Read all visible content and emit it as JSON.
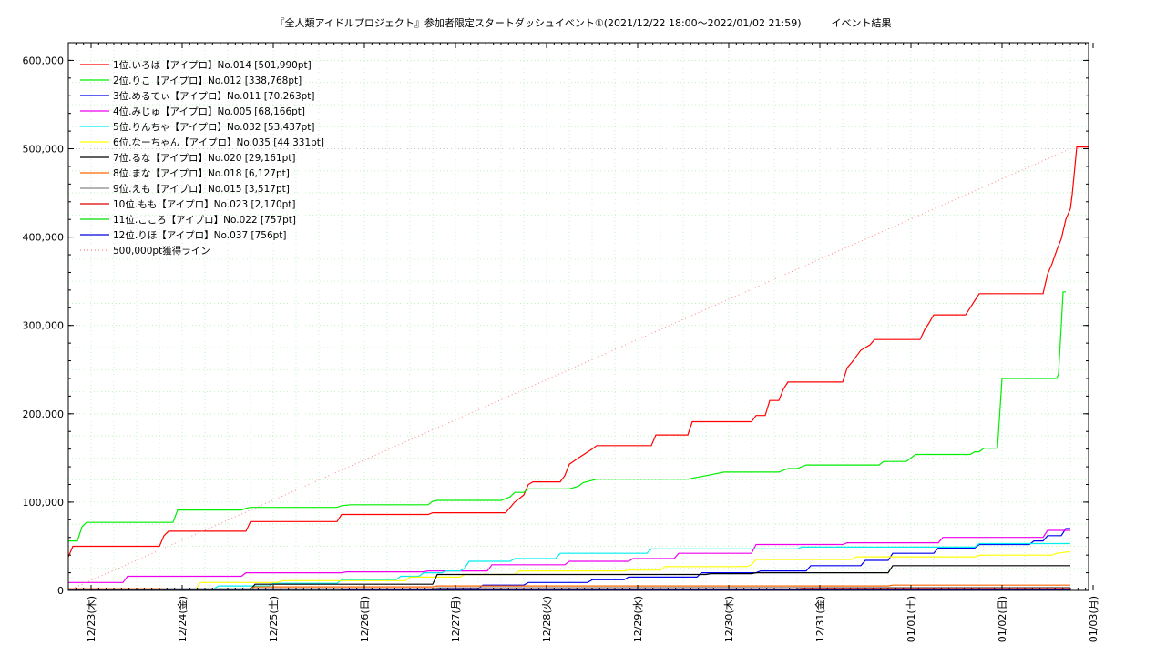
{
  "chart_data": {
    "type": "line",
    "title": "『全人類アイドルプロジェクト』参加者限定スタートダッシュイベント①(2021/12/22 18:00～2022/01/02 21:59)　　　イベント結果",
    "ylim": [
      0,
      620000
    ],
    "xlim": [
      0,
      11.2
    ],
    "yticks": [
      {
        "value": 0,
        "label": "0"
      },
      {
        "value": 100000,
        "label": "100,000"
      },
      {
        "value": 200000,
        "label": "200,000"
      },
      {
        "value": 300000,
        "label": "300,000"
      },
      {
        "value": 400000,
        "label": "400,000"
      },
      {
        "value": 500000,
        "label": "500,000"
      },
      {
        "value": 600000,
        "label": "600,000"
      }
    ],
    "xticks": [
      {
        "value": 0.25,
        "label": "12/23(木)"
      },
      {
        "value": 1.25,
        "label": "12/24(金)"
      },
      {
        "value": 2.25,
        "label": "12/25(土)"
      },
      {
        "value": 3.25,
        "label": "12/26(日)"
      },
      {
        "value": 4.25,
        "label": "12/27(月)"
      },
      {
        "value": 5.25,
        "label": "12/28(火)"
      },
      {
        "value": 6.25,
        "label": "12/29(水)"
      },
      {
        "value": 7.25,
        "label": "12/30(木)"
      },
      {
        "value": 8.25,
        "label": "12/31(金)"
      },
      {
        "value": 9.25,
        "label": "01/01(土)"
      },
      {
        "value": 10.25,
        "label": "01/02(日)"
      },
      {
        "value": 11.25,
        "label": "01/03(月)"
      }
    ],
    "grid": true,
    "legend_position": "top-left",
    "series": [
      {
        "name": "1位.いろは【アイプロ】No.014 [501,990pt]",
        "color": "#ff0000",
        "points": [
          [
            0,
            38000
          ],
          [
            0.05,
            50000
          ],
          [
            1.0,
            50000
          ],
          [
            1.05,
            62000
          ],
          [
            1.1,
            67000
          ],
          [
            1.95,
            67000
          ],
          [
            2.0,
            78000
          ],
          [
            2.95,
            78000
          ],
          [
            3.0,
            86000
          ],
          [
            3.95,
            86000
          ],
          [
            4.0,
            88000
          ],
          [
            4.8,
            88000
          ],
          [
            4.9,
            100000
          ],
          [
            5.0,
            108000
          ],
          [
            5.05,
            120000
          ],
          [
            5.1,
            123000
          ],
          [
            5.4,
            123000
          ],
          [
            5.45,
            130000
          ],
          [
            5.5,
            143000
          ],
          [
            5.6,
            150000
          ],
          [
            5.75,
            160000
          ],
          [
            5.8,
            164000
          ],
          [
            6.4,
            164000
          ],
          [
            6.45,
            176000
          ],
          [
            6.8,
            176000
          ],
          [
            6.85,
            191000
          ],
          [
            7.5,
            191000
          ],
          [
            7.55,
            198000
          ],
          [
            7.65,
            198000
          ],
          [
            7.7,
            215000
          ],
          [
            7.8,
            215000
          ],
          [
            7.85,
            228000
          ],
          [
            7.9,
            236000
          ],
          [
            8.5,
            236000
          ],
          [
            8.55,
            252000
          ],
          [
            8.6,
            258000
          ],
          [
            8.65,
            265000
          ],
          [
            8.7,
            272000
          ],
          [
            8.8,
            278000
          ],
          [
            8.85,
            284000
          ],
          [
            9.35,
            284000
          ],
          [
            9.4,
            295000
          ],
          [
            9.45,
            303000
          ],
          [
            9.5,
            312000
          ],
          [
            9.85,
            312000
          ],
          [
            9.9,
            320000
          ],
          [
            9.95,
            328000
          ],
          [
            10.0,
            336000
          ],
          [
            10.7,
            336000
          ],
          [
            10.75,
            358000
          ],
          [
            10.8,
            370000
          ],
          [
            10.85,
            385000
          ],
          [
            10.9,
            398000
          ],
          [
            10.95,
            420000
          ],
          [
            11.0,
            432000
          ],
          [
            11.02,
            448000
          ],
          [
            11.05,
            480000
          ],
          [
            11.07,
            502000
          ],
          [
            11.2,
            502000
          ]
        ]
      },
      {
        "name": "2位.りこ【アイプロ】No.012 [338,768pt]",
        "color": "#00ee00",
        "points": [
          [
            0,
            56000
          ],
          [
            0.1,
            56000
          ],
          [
            0.15,
            72000
          ],
          [
            0.2,
            77000
          ],
          [
            1.15,
            77000
          ],
          [
            1.2,
            91000
          ],
          [
            1.9,
            91000
          ],
          [
            1.95,
            93000
          ],
          [
            2.0,
            94000
          ],
          [
            2.95,
            94000
          ],
          [
            3.0,
            96000
          ],
          [
            3.1,
            97000
          ],
          [
            3.95,
            97000
          ],
          [
            4.0,
            101000
          ],
          [
            4.05,
            102000
          ],
          [
            4.75,
            102000
          ],
          [
            4.85,
            106000
          ],
          [
            4.9,
            111000
          ],
          [
            5.0,
            111000
          ],
          [
            5.05,
            115000
          ],
          [
            5.5,
            115000
          ],
          [
            5.6,
            118000
          ],
          [
            5.65,
            122000
          ],
          [
            5.8,
            126000
          ],
          [
            6.8,
            126000
          ],
          [
            6.9,
            128000
          ],
          [
            7.0,
            130000
          ],
          [
            7.2,
            134000
          ],
          [
            7.8,
            134000
          ],
          [
            7.9,
            138000
          ],
          [
            8.0,
            138000
          ],
          [
            8.1,
            142000
          ],
          [
            8.9,
            142000
          ],
          [
            8.95,
            146000
          ],
          [
            9.2,
            146000
          ],
          [
            9.3,
            154000
          ],
          [
            9.9,
            154000
          ],
          [
            9.95,
            157000
          ],
          [
            10.0,
            157000
          ],
          [
            10.05,
            161000
          ],
          [
            10.2,
            161000
          ],
          [
            10.25,
            240000
          ],
          [
            10.85,
            240000
          ],
          [
            10.87,
            245000
          ],
          [
            10.9,
            300000
          ],
          [
            10.92,
            338000
          ],
          [
            10.95,
            338000
          ]
        ]
      },
      {
        "name": "3位.めるてぃ【アイプロ】No.011 [70,263pt]",
        "color": "#0000ee",
        "points": [
          [
            0,
            1000
          ],
          [
            4.5,
            2000
          ],
          [
            4.55,
            6000
          ],
          [
            5.0,
            6000
          ],
          [
            5.05,
            9000
          ],
          [
            5.7,
            9000
          ],
          [
            5.75,
            12000
          ],
          [
            6.1,
            12000
          ],
          [
            6.15,
            15000
          ],
          [
            6.9,
            15000
          ],
          [
            6.95,
            20000
          ],
          [
            7.55,
            20000
          ],
          [
            7.6,
            22000
          ],
          [
            8.1,
            22000
          ],
          [
            8.15,
            28000
          ],
          [
            8.7,
            28000
          ],
          [
            8.75,
            34000
          ],
          [
            9.0,
            34000
          ],
          [
            9.05,
            42000
          ],
          [
            9.5,
            42000
          ],
          [
            9.55,
            48000
          ],
          [
            9.95,
            48000
          ],
          [
            10.0,
            52000
          ],
          [
            10.55,
            52000
          ],
          [
            10.6,
            56000
          ],
          [
            10.7,
            56000
          ],
          [
            10.75,
            62000
          ],
          [
            10.9,
            62000
          ],
          [
            10.95,
            70000
          ],
          [
            11.0,
            70000
          ]
        ]
      },
      {
        "name": "4位.みじゅ【アイプロ】No.005 [68,166pt]",
        "color": "#ee00ee",
        "points": [
          [
            0,
            9000
          ],
          [
            0.6,
            9000
          ],
          [
            0.65,
            16000
          ],
          [
            1.9,
            16000
          ],
          [
            1.95,
            20000
          ],
          [
            3.0,
            20000
          ],
          [
            3.05,
            21000
          ],
          [
            3.9,
            21000
          ],
          [
            3.95,
            22000
          ],
          [
            4.6,
            22000
          ],
          [
            4.65,
            29000
          ],
          [
            5.45,
            29000
          ],
          [
            5.5,
            33000
          ],
          [
            6.15,
            33000
          ],
          [
            6.2,
            36000
          ],
          [
            6.65,
            36000
          ],
          [
            6.7,
            42000
          ],
          [
            7.5,
            42000
          ],
          [
            7.55,
            52000
          ],
          [
            8.5,
            52000
          ],
          [
            8.55,
            54000
          ],
          [
            9.55,
            54000
          ],
          [
            9.6,
            60000
          ],
          [
            10.7,
            60000
          ],
          [
            10.75,
            68000
          ],
          [
            11.0,
            68000
          ]
        ]
      },
      {
        "name": "5位.りんちゃ【アイプロ】No.032 [53,437pt]",
        "color": "#00eeee",
        "points": [
          [
            0,
            2000
          ],
          [
            1.6,
            2000
          ],
          [
            1.65,
            5000
          ],
          [
            2.2,
            5000
          ],
          [
            2.25,
            8000
          ],
          [
            2.95,
            8000
          ],
          [
            3.0,
            12000
          ],
          [
            3.6,
            12000
          ],
          [
            3.65,
            16000
          ],
          [
            3.85,
            16000
          ],
          [
            3.9,
            20000
          ],
          [
            4.1,
            20000
          ],
          [
            4.15,
            22000
          ],
          [
            4.3,
            22000
          ],
          [
            4.35,
            25000
          ],
          [
            4.35,
            25000
          ],
          [
            4.4,
            33000
          ],
          [
            4.85,
            33000
          ],
          [
            4.9,
            36000
          ],
          [
            5.35,
            36000
          ],
          [
            5.4,
            42000
          ],
          [
            6.35,
            42000
          ],
          [
            6.4,
            47000
          ],
          [
            8.0,
            47000
          ],
          [
            8.05,
            49000
          ],
          [
            9.95,
            49000
          ],
          [
            10.0,
            53000
          ],
          [
            11.0,
            53000
          ]
        ]
      },
      {
        "name": "6位.なーちゃん【アイプロ】No.035 [44,331pt]",
        "color": "#ffff00",
        "points": [
          [
            0,
            1000
          ],
          [
            1.4,
            1000
          ],
          [
            1.45,
            9000
          ],
          [
            2.3,
            9000
          ],
          [
            2.35,
            11000
          ],
          [
            3.7,
            11000
          ],
          [
            3.75,
            15000
          ],
          [
            4.3,
            15000
          ],
          [
            4.35,
            18000
          ],
          [
            4.9,
            18000
          ],
          [
            4.95,
            22000
          ],
          [
            6.1,
            22000
          ],
          [
            6.15,
            23000
          ],
          [
            6.5,
            23000
          ],
          [
            6.55,
            27000
          ],
          [
            7.45,
            27000
          ],
          [
            7.5,
            29000
          ],
          [
            7.55,
            35000
          ],
          [
            8.6,
            35000
          ],
          [
            8.65,
            38000
          ],
          [
            9.95,
            38000
          ],
          [
            10.0,
            40000
          ],
          [
            10.8,
            40000
          ],
          [
            10.85,
            42000
          ],
          [
            11.0,
            44000
          ]
        ]
      },
      {
        "name": "7位.るな【アイプロ】No.020 [29,161pt]",
        "color": "#000000",
        "points": [
          [
            0,
            1000
          ],
          [
            2.0,
            1000
          ],
          [
            2.05,
            7000
          ],
          [
            4.0,
            7000
          ],
          [
            4.05,
            18000
          ],
          [
            7.0,
            18000
          ],
          [
            7.05,
            19000
          ],
          [
            7.5,
            19000
          ],
          [
            7.55,
            20000
          ],
          [
            9.0,
            20000
          ],
          [
            9.05,
            28000
          ],
          [
            11.0,
            28000
          ]
        ]
      },
      {
        "name": "8位.まな【アイプロ】No.018 [6,127pt]",
        "color": "#ff6600",
        "points": [
          [
            0,
            2000
          ],
          [
            2.0,
            2000
          ],
          [
            2.05,
            4000
          ],
          [
            4.0,
            4000
          ],
          [
            4.05,
            5000
          ],
          [
            9.0,
            5000
          ],
          [
            9.05,
            6000
          ],
          [
            11.0,
            6000
          ]
        ]
      },
      {
        "name": "9位.えも【アイプロ】No.015 [3,517pt]",
        "color": "#888888",
        "points": [
          [
            0,
            500
          ],
          [
            1.0,
            500
          ],
          [
            1.05,
            2000
          ],
          [
            4.0,
            2000
          ],
          [
            4.05,
            3000
          ],
          [
            11.0,
            3500
          ]
        ]
      },
      {
        "name": "10位.もも【アイプロ】No.023 [2,170pt]",
        "color": "#dd0000",
        "points": [
          [
            0,
            300
          ],
          [
            2.0,
            300
          ],
          [
            2.05,
            1500
          ],
          [
            8.0,
            1500
          ],
          [
            8.05,
            2100
          ],
          [
            11.0,
            2100
          ]
        ]
      },
      {
        "name": "11位.こころ【アイプロ】No.022 [757pt]",
        "color": "#00dd00",
        "points": [
          [
            0,
            200
          ],
          [
            3.0,
            200
          ],
          [
            3.05,
            700
          ],
          [
            11.0,
            750
          ]
        ]
      },
      {
        "name": "12位.りほ【アイプロ】No.037 [756pt]",
        "color": "#0000dd",
        "points": [
          [
            0,
            100
          ],
          [
            3.0,
            100
          ],
          [
            3.05,
            700
          ],
          [
            11.0,
            750
          ]
        ]
      },
      {
        "name": "500,000pt獲得ライン",
        "color": "#ff8888",
        "dashed": true,
        "points": [
          [
            0,
            0
          ],
          [
            11.0,
            500000
          ]
        ]
      }
    ],
    "reference_lines": [
      {
        "value": 500000,
        "color": "#c8c8c8"
      }
    ]
  }
}
